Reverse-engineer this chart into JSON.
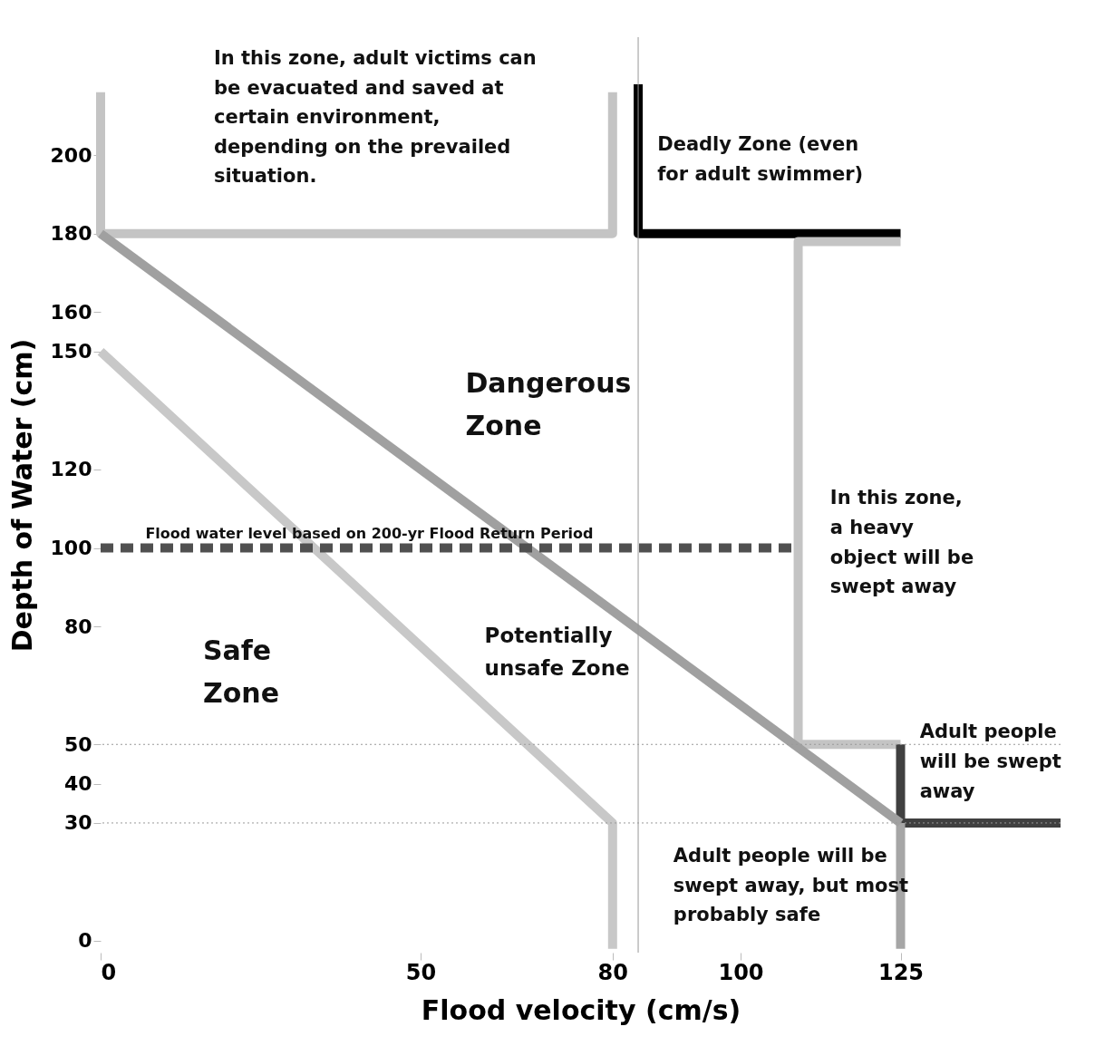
{
  "chart_data": {
    "type": "line",
    "xlabel": "Flood velocity (cm/s)",
    "ylabel": "Depth of Water (cm)",
    "xlim": [
      0,
      150
    ],
    "ylim": [
      -3,
      230
    ],
    "xticks": [
      0,
      50,
      80,
      100,
      125
    ],
    "yticks": [
      0,
      30,
      40,
      50,
      80,
      100,
      120,
      150,
      160,
      180,
      200
    ],
    "grid": false,
    "legend": false,
    "marker": "none",
    "series": [
      {
        "color": "#c4c4c4",
        "line_style": "solid",
        "x": [
          0,
          0,
          80,
          80
        ],
        "values": [
          216,
          180,
          180,
          216
        ]
      },
      {
        "color": "#000000",
        "line_style": "solid",
        "x": [
          84,
          84,
          125
        ],
        "values": [
          218,
          180,
          180
        ]
      },
      {
        "color": "#c4c4c4",
        "line_style": "solid",
        "x": [
          125,
          109,
          109,
          125
        ],
        "values": [
          178,
          178,
          50,
          50
        ]
      },
      {
        "color": "#404040",
        "line_style": "solid",
        "x": [
          125,
          125,
          150
        ],
        "values": [
          50,
          30,
          30
        ]
      },
      {
        "color": "#a6a6a6",
        "line_style": "solid",
        "x": [
          125,
          125
        ],
        "values": [
          30,
          -2
        ]
      },
      {
        "color": "#a0a0a0",
        "line_style": "solid",
        "x": [
          0,
          125
        ],
        "values": [
          180,
          30
        ]
      },
      {
        "color": "#c8c8c8",
        "line_style": "solid",
        "x": [
          0,
          80,
          80
        ],
        "values": [
          150,
          30,
          -2
        ]
      },
      {
        "color": "#505050",
        "line_style": "dashed",
        "x": [
          0,
          109
        ],
        "values": [
          100,
          100
        ]
      }
    ],
    "ref_lines": [
      {
        "axis": "x",
        "value": 84,
        "color": "#999999",
        "line_style": "solid"
      },
      {
        "axis": "y",
        "value": 50,
        "color": "#999999",
        "line_style": "dotted"
      },
      {
        "axis": "y",
        "value": 30,
        "color": "#999999",
        "line_style": "dotted"
      }
    ],
    "annotations": [
      "In this zone, adult victims can\nbe evacuated and saved at\ncertain environment,\ndepending on the prevailed\nsituation.",
      "Deadly Zone (even\nfor adult swimmer)",
      "Dangerous\nZone",
      "In this zone,\na heavy\nobject will be\nswept away",
      "Potentially\nunsafe Zone",
      "Safe\nZone",
      "Adult people\nwill be swept\naway",
      "Adult people will be\nswept away, but most\nprobably safe",
      "Flood water level based on 200-yr Flood Return Period"
    ]
  }
}
